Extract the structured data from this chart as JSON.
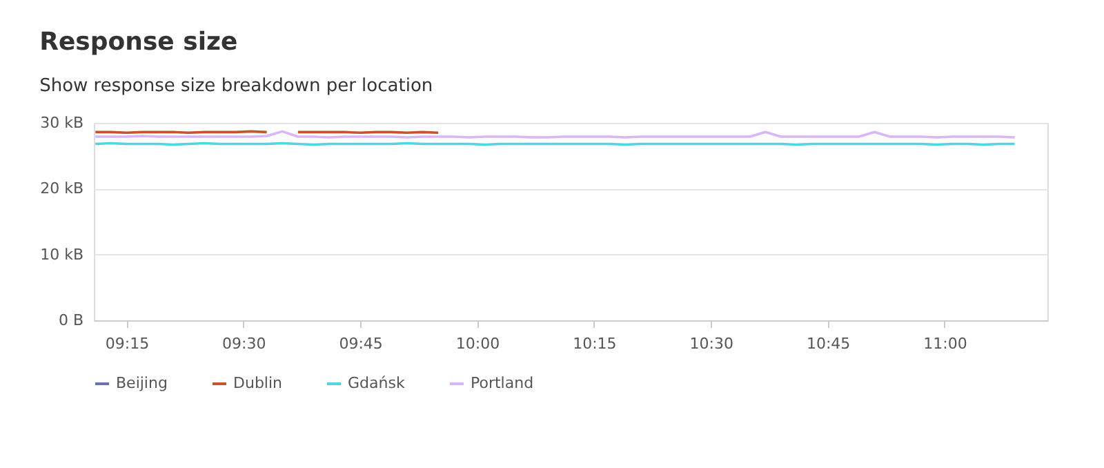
{
  "chart_data": {
    "type": "line",
    "title": "Response size",
    "subtitle": "Show response size breakdown per location",
    "x": [
      9.1833,
      9.2167,
      9.25,
      9.2833,
      9.3167,
      9.35,
      9.3833,
      9.4167,
      9.45,
      9.4833,
      9.5167,
      9.55,
      9.5833,
      9.6167,
      9.65,
      9.6833,
      9.7167,
      9.75,
      9.7833,
      9.8167,
      9.85,
      9.8833,
      9.9167,
      9.95,
      9.9833,
      10.0167,
      10.05,
      10.0833,
      10.1167,
      10.15,
      10.1833,
      10.2167,
      10.25,
      10.2833,
      10.3167,
      10.35,
      10.3833,
      10.4167,
      10.45,
      10.4833,
      10.5167,
      10.55,
      10.5833,
      10.6167,
      10.65,
      10.6833,
      10.7167,
      10.75,
      10.7833,
      10.8167,
      10.85,
      10.8833,
      10.9167,
      10.95,
      10.9833,
      11.0167,
      11.05,
      11.0833,
      11.1167,
      11.15
    ],
    "series": [
      {
        "name": "Beijing",
        "color": "#6b72b4",
        "values": [
          null,
          null,
          null,
          null,
          null,
          null,
          null,
          null,
          null,
          null,
          null,
          null,
          null,
          null,
          null,
          null,
          null,
          null,
          null,
          null,
          null,
          null,
          null,
          null,
          null,
          null,
          null,
          null,
          null,
          null,
          null,
          null,
          null,
          null,
          null,
          null,
          null,
          null,
          null,
          null,
          null,
          null,
          null,
          null,
          null,
          null,
          null,
          null,
          null,
          null,
          null,
          null,
          null,
          null,
          null,
          null,
          null,
          null,
          null,
          null
        ]
      },
      {
        "name": "Dublin",
        "color": "#c4572a",
        "values": [
          28.6,
          28.6,
          28.5,
          28.6,
          28.6,
          28.6,
          28.5,
          28.6,
          28.6,
          28.6,
          28.7,
          28.6,
          null,
          28.6,
          28.6,
          28.6,
          28.6,
          28.5,
          28.6,
          28.6,
          28.5,
          28.6,
          28.5,
          null,
          null,
          null,
          null,
          null,
          null,
          null,
          null,
          null,
          null,
          null,
          null,
          null,
          null,
          null,
          null,
          null,
          null,
          null,
          null,
          null,
          null,
          null,
          null,
          null,
          null,
          null,
          null,
          null,
          null,
          null,
          null,
          null,
          null,
          null,
          null,
          null
        ]
      },
      {
        "name": "Gdańsk",
        "color": "#4fd5e4",
        "values": [
          26.8,
          26.9,
          26.8,
          26.8,
          26.8,
          26.7,
          26.8,
          26.9,
          26.8,
          26.8,
          26.8,
          26.8,
          26.9,
          26.8,
          26.7,
          26.8,
          26.8,
          26.8,
          26.8,
          26.8,
          26.9,
          26.8,
          26.8,
          26.8,
          26.8,
          26.7,
          26.8,
          26.8,
          26.8,
          26.8,
          26.8,
          26.8,
          26.8,
          26.8,
          26.7,
          26.8,
          26.8,
          26.8,
          26.8,
          26.8,
          26.8,
          26.8,
          26.8,
          26.8,
          26.8,
          26.7,
          26.8,
          26.8,
          26.8,
          26.8,
          26.8,
          26.8,
          26.8,
          26.8,
          26.7,
          26.8,
          26.8,
          26.7,
          26.8,
          26.8
        ]
      },
      {
        "name": "Portland",
        "color": "#d9b6f5",
        "values": [
          27.9,
          27.9,
          27.9,
          28.0,
          27.9,
          27.9,
          27.9,
          27.9,
          27.9,
          27.9,
          27.9,
          28.0,
          28.7,
          27.9,
          27.9,
          27.8,
          27.9,
          27.9,
          27.9,
          27.9,
          27.8,
          27.9,
          27.9,
          27.9,
          27.8,
          27.9,
          27.9,
          27.9,
          27.8,
          27.8,
          27.9,
          27.9,
          27.9,
          27.9,
          27.8,
          27.9,
          27.9,
          27.9,
          27.9,
          27.9,
          27.9,
          27.9,
          27.9,
          28.6,
          27.9,
          27.9,
          27.9,
          27.9,
          27.9,
          27.9,
          28.6,
          27.9,
          27.9,
          27.9,
          27.8,
          27.9,
          27.9,
          27.9,
          27.9,
          27.8
        ]
      }
    ],
    "xlim": [
      9.18,
      11.22
    ],
    "xticks": [
      {
        "value": 9.25,
        "label": "09:15"
      },
      {
        "value": 9.5,
        "label": "09:30"
      },
      {
        "value": 9.75,
        "label": "09:45"
      },
      {
        "value": 10,
        "label": "10:00"
      },
      {
        "value": 10.25,
        "label": "10:15"
      },
      {
        "value": 10.5,
        "label": "10:30"
      },
      {
        "value": 10.75,
        "label": "10:45"
      },
      {
        "value": 11,
        "label": "11:00"
      }
    ],
    "ylim": [
      0,
      30
    ],
    "yticks": [
      {
        "value": 0,
        "label": "0 B"
      },
      {
        "value": 10,
        "label": "10 kB"
      },
      {
        "value": 20,
        "label": "20 kB"
      },
      {
        "value": 30,
        "label": "30 kB"
      }
    ],
    "grid": "y",
    "legend": "bottom",
    "marker": "none",
    "line_style": "solid"
  }
}
